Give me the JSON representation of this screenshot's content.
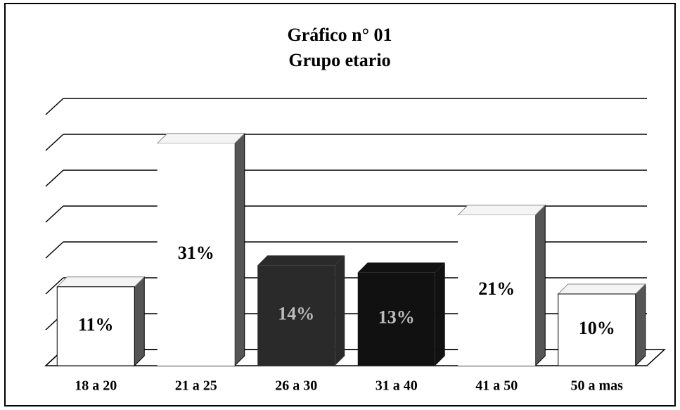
{
  "chart_data": {
    "type": "bar3d",
    "title": "Gráfico n° 01",
    "subtitle": "Grupo etario",
    "categories": [
      "18 a 20",
      "21 a 25",
      "26 a 30",
      "31 a 40",
      "41 a 50",
      "50 a mas"
    ],
    "values": [
      11,
      31,
      14,
      13,
      21,
      10
    ],
    "value_labels": [
      "11%",
      "31%",
      "14%",
      "13%",
      "21%",
      "10%"
    ],
    "colors": [
      "#ffffff",
      "#ffffff",
      "#2a2a2a",
      "#111111",
      "#ffffff",
      "#ffffff"
    ],
    "ylim": [
      0,
      35
    ],
    "yticks": [
      0,
      5,
      10,
      15,
      20,
      25,
      30,
      35
    ],
    "grid": true
  }
}
